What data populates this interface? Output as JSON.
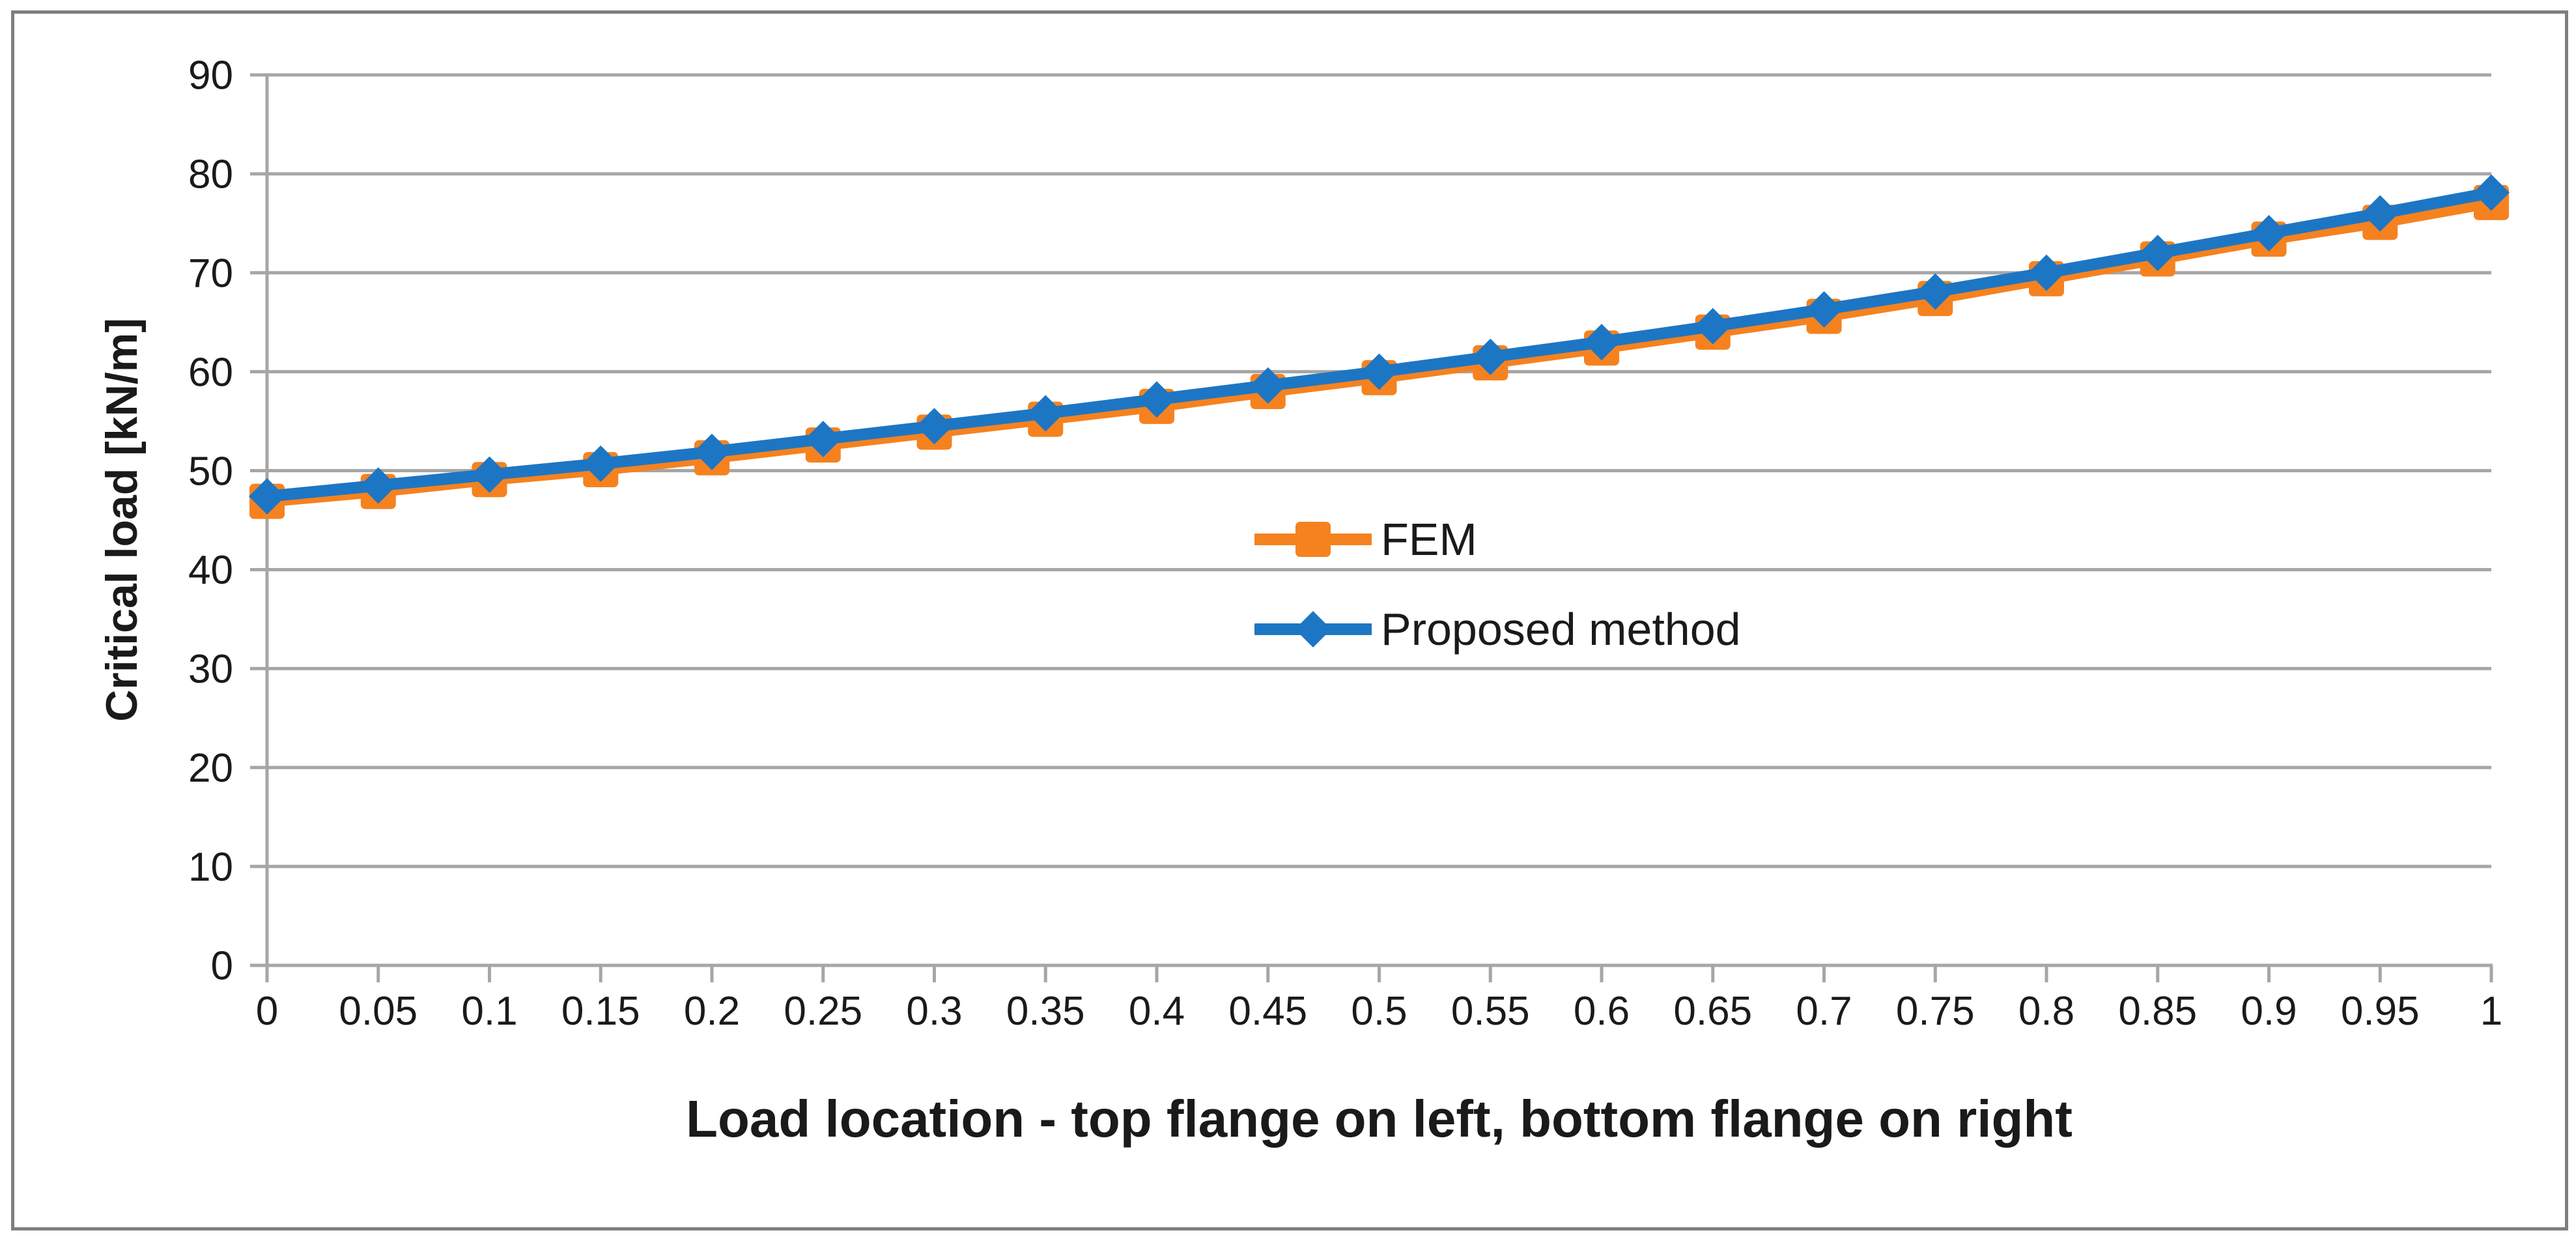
{
  "figure": {
    "background_color": "#ffffff",
    "border_color": "#7f7f7f"
  },
  "chart_data": {
    "type": "line",
    "title": "",
    "xlabel": "Load location - top flange on left, bottom flange on right",
    "ylabel": "Critical load [kN/m]",
    "ylim": [
      0,
      90
    ],
    "ytick_step": 10,
    "yticks": [
      "0",
      "10",
      "20",
      "30",
      "40",
      "50",
      "60",
      "70",
      "80",
      "90"
    ],
    "xticks": [
      "0",
      "0.05",
      "0.1",
      "0.15",
      "0.2",
      "0.25",
      "0.3",
      "0.35",
      "0.4",
      "0.45",
      "0.5",
      "0.55",
      "0.6",
      "0.65",
      "0.7",
      "0.75",
      "0.8",
      "0.85",
      "0.9",
      "0.95",
      "1"
    ],
    "x": [
      0,
      0.05,
      0.1,
      0.15,
      0.2,
      0.25,
      0.3,
      0.35,
      0.4,
      0.45,
      0.5,
      0.55,
      0.6,
      0.65,
      0.7,
      0.75,
      0.8,
      0.85,
      0.9,
      0.95,
      1
    ],
    "series": [
      {
        "name": "FEM",
        "marker": "square",
        "color": "#f5821f",
        "values": [
          46.9,
          47.9,
          49.1,
          50.1,
          51.3,
          52.6,
          53.9,
          55.2,
          56.5,
          58.0,
          59.4,
          60.9,
          62.4,
          64.0,
          65.6,
          67.4,
          69.4,
          71.4,
          73.4,
          75.1,
          77.1
        ]
      },
      {
        "name": "Proposed method",
        "marker": "diamond",
        "color": "#1d76c4",
        "values": [
          47.4,
          48.5,
          49.6,
          50.7,
          51.9,
          53.2,
          54.5,
          55.8,
          57.2,
          58.6,
          60.0,
          61.5,
          63.0,
          64.6,
          66.3,
          68.1,
          70.0,
          72.0,
          74.0,
          76.0,
          78.1
        ]
      }
    ],
    "grid": "horizontal",
    "legend_position": "center",
    "colors": {
      "gridline": "#a6a6a6",
      "axis": "#a6a6a6",
      "tick_label": "#1a1a1a",
      "axis_title": "#1a1a1a"
    }
  }
}
